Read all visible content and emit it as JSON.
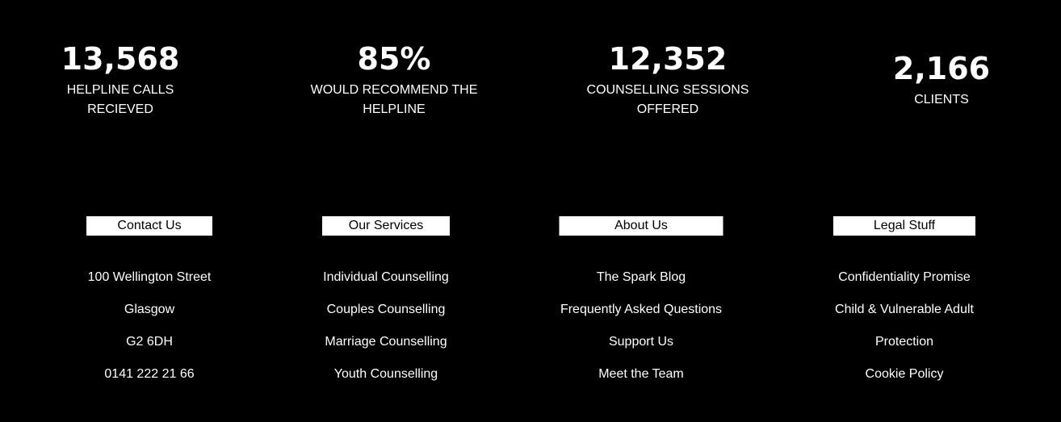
{
  "stats": [
    {
      "value": "13,568",
      "label_lines": [
        "HELPLINE CALLS",
        "RECIEVED"
      ]
    },
    {
      "value": "85%",
      "label_lines": [
        "WOULD RECOMMEND THE",
        "HELPLINE"
      ]
    },
    {
      "value": "12,352",
      "label_lines": [
        "COUNSELLING SESSIONS",
        "OFFERED"
      ]
    },
    {
      "value": "2,166",
      "label_lines": [
        "CLIENTS"
      ]
    }
  ],
  "footer": {
    "contact": {
      "heading": "Contact Us",
      "items": [
        "100 Wellington Street",
        "Glasgow",
        "G2 6DH",
        "0141 222 21 66"
      ]
    },
    "services": {
      "heading": "Our Services",
      "items": [
        "Individual Counselling",
        "Couples Counselling",
        "Marriage Counselling",
        "Youth Counselling"
      ]
    },
    "about": {
      "heading": "About Us",
      "items": [
        "The Spark Blog",
        "Frequently Asked Questions",
        "Support Us",
        "Meet the Team"
      ]
    },
    "legal": {
      "heading": "Legal Stuff",
      "items": [
        "Confidentiality Promise",
        "Child & Vulnerable Adult",
        "Protection",
        "Cookie Policy"
      ]
    }
  },
  "colors": {
    "background": "#000000",
    "text": "#ffffff",
    "heading_bg": "#ffffff",
    "heading_text": "#000000"
  }
}
